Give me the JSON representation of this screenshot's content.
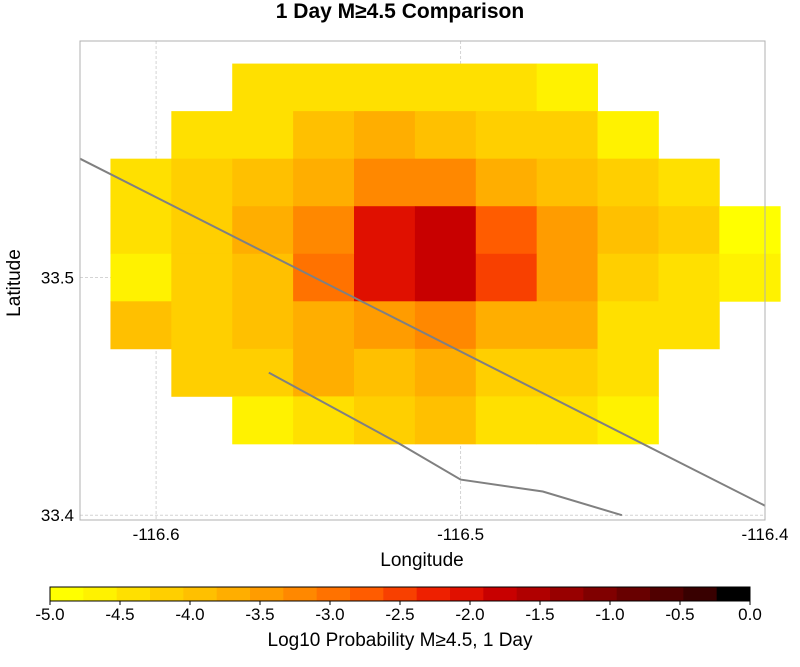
{
  "chart_data": {
    "type": "heatmap",
    "title": "1 Day M≥4.5 Comparison",
    "xlabel": "Longitude",
    "ylabel": "Latitude",
    "xlim": [
      -116.625,
      -116.4
    ],
    "ylim": [
      33.398,
      33.5995
    ],
    "x_ticks": [
      {
        "value": -116.6,
        "label": "-116.6"
      },
      {
        "value": -116.5,
        "label": "-116.5"
      },
      {
        "value": -116.4,
        "label": "-116.4"
      }
    ],
    "y_ticks": [
      {
        "value": 33.5,
        "label": "33.5"
      },
      {
        "value": 33.4,
        "label": "33.4"
      }
    ],
    "grid": true,
    "cell_size_deg": 0.02,
    "grid_origin": {
      "lon": -116.615,
      "lat": 33.43
    },
    "rows": [
      {
        "lat_top": 33.59,
        "col_start": 2,
        "values": [
          -4.4,
          -4.4,
          -4.3,
          -4.3,
          -4.4,
          -4.7
        ]
      },
      {
        "lat_top": 33.57,
        "col_start": 1,
        "values": [
          -4.3,
          -4.3,
          -4.0,
          -3.8,
          -4.0,
          -4.1,
          -4.2,
          -4.6
        ]
      },
      {
        "lat_top": 33.55,
        "col_start": 0,
        "values": [
          -4.3,
          -4.1,
          -3.9,
          -3.6,
          -3.3,
          -3.3,
          -3.7,
          -4.0,
          -4.1,
          -4.3
        ]
      },
      {
        "lat_top": 33.53,
        "col_start": 0,
        "values": [
          -4.3,
          -4.1,
          -3.8,
          -3.3,
          -2.0,
          -1.7,
          -2.7,
          -3.5,
          -3.9,
          -4.2,
          -4.8
        ]
      },
      {
        "lat_top": 33.51,
        "col_start": 0,
        "values": [
          -4.6,
          -4.2,
          -3.9,
          -3.0,
          -2.0,
          -1.8,
          -2.4,
          -3.5,
          -4.2,
          -4.3,
          -4.7
        ]
      },
      {
        "lat_top": 33.49,
        "col_start": 0,
        "values": [
          -4.0,
          -4.2,
          -3.9,
          -3.6,
          -3.4,
          -3.3,
          -3.7,
          -3.8,
          -4.5,
          -4.3
        ]
      },
      {
        "lat_top": 33.47,
        "col_start": 1,
        "values": [
          -4.2,
          -4.2,
          -3.8,
          -4.0,
          -3.8,
          -4.1,
          -4.2,
          -4.3
        ]
      },
      {
        "lat_top": 33.45,
        "col_start": 2,
        "values": [
          -4.7,
          -4.3,
          -4.1,
          -4.0,
          -4.3,
          -4.4,
          -4.6
        ]
      }
    ],
    "fault_traces": [
      {
        "points": [
          [
            -116.625,
            33.55
          ],
          [
            -116.4,
            33.404
          ]
        ]
      },
      {
        "points": [
          [
            -116.563,
            33.46
          ],
          [
            -116.52,
            33.43
          ],
          [
            -116.5,
            33.415
          ],
          [
            -116.473,
            33.41
          ],
          [
            -116.447,
            33.4
          ]
        ]
      }
    ],
    "colorbar": {
      "label": "Log10 Probability M≥4.5, 1 Day",
      "min": -5.0,
      "max": 0.0,
      "ticks": [
        "-5.0",
        "-4.5",
        "-4.0",
        "-3.5",
        "-3.0",
        "-2.5",
        "-2.0",
        "-1.5",
        "-1.0",
        "-0.5",
        "0.0"
      ],
      "colors": [
        "#ffff00",
        "#fff200",
        "#ffe000",
        "#ffcf00",
        "#ffc000",
        "#ffae00",
        "#ff9c00",
        "#ff8800",
        "#ff7200",
        "#ff5c00",
        "#f84000",
        "#ee2000",
        "#e01000",
        "#c80000",
        "#b00000",
        "#980000",
        "#800000",
        "#680000",
        "#500000",
        "#380000",
        "#000000"
      ]
    }
  }
}
